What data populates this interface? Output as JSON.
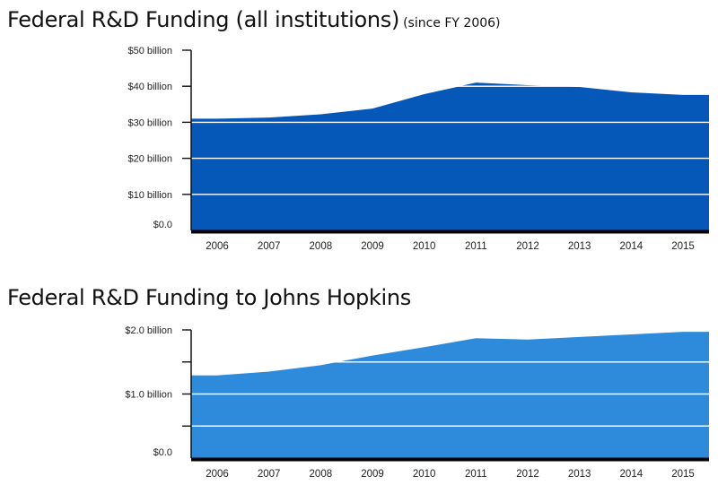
{
  "chart_data": [
    {
      "type": "area",
      "title": "Federal R&D Funding (all institutions)",
      "subtitle": "(since FY 2006)",
      "x": [
        2006,
        2007,
        2008,
        2009,
        2010,
        2011,
        2012,
        2013,
        2014,
        2015
      ],
      "series": [
        {
          "values": [
            31.0,
            31.3,
            32.2,
            33.8,
            37.8,
            41.0,
            40.3,
            39.8,
            38.3,
            37.6
          ]
        }
      ],
      "ylim": [
        0,
        50
      ],
      "ytick_values": [
        0,
        10,
        20,
        30,
        40,
        50
      ],
      "ytick_labels": [
        "$0.0",
        "$10 billion",
        "$20 billion",
        "$30 billion",
        "$40 billion",
        "$50 billion"
      ],
      "xlabel": "",
      "ylabel": "",
      "grid": true,
      "color": "#0558b8"
    },
    {
      "type": "area",
      "title": "Federal R&D Funding to Johns Hopkins",
      "subtitle": "",
      "x": [
        2006,
        2007,
        2008,
        2009,
        2010,
        2011,
        2012,
        2013,
        2014,
        2015
      ],
      "series": [
        {
          "values": [
            1.29,
            1.35,
            1.45,
            1.6,
            1.73,
            1.87,
            1.85,
            1.89,
            1.93,
            1.97
          ]
        }
      ],
      "ylim": [
        0,
        2.0
      ],
      "ytick_values": [
        0,
        0.5,
        1.0,
        1.5,
        2.0
      ],
      "ytick_labels": [
        "$0.0",
        "",
        "$1.0 billion",
        "",
        "$2.0 billion"
      ],
      "xlabel": "",
      "ylabel": "",
      "grid": true,
      "color": "#2e8bdc"
    }
  ]
}
